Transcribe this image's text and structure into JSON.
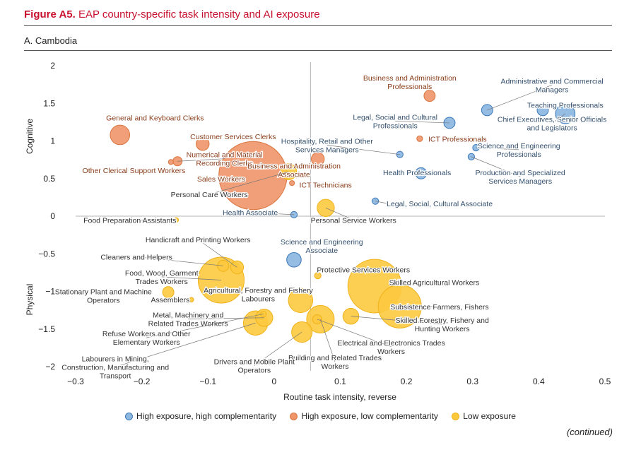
{
  "figure": {
    "label": "Figure A5.",
    "title": "EAP country-specific task intensity and AI exposure",
    "panel": "A. Cambodia",
    "continued": "(continued)"
  },
  "colors": {
    "high_comp": "#8fb8e0",
    "high_comp_edge": "#3a78b8",
    "low_comp": "#f0956a",
    "low_comp_edge": "#d9763f",
    "low_exp": "#fcc93e",
    "low_exp_edge": "#f0b21a",
    "label_blue": "#34506e",
    "label_orange": "#8a3d1a",
    "label_yellow": "#333333",
    "title_red": "#c8102e"
  },
  "legend": [
    {
      "key": "high_comp",
      "label": "High exposure, high complementarity"
    },
    {
      "key": "low_comp",
      "label": "High exposure, low complementarity"
    },
    {
      "key": "low_exp",
      "label": "Low exposure"
    }
  ],
  "chart_data": {
    "type": "scatter",
    "title": "A. Cambodia",
    "xlabel": "Routine task intensity, reverse",
    "ylabel_top": "Cognitive",
    "ylabel_bottom": "Physical",
    "xlim": [
      -0.3,
      0.5
    ],
    "ylim": [
      -2,
      2
    ],
    "xticks": [
      -0.3,
      -0.2,
      -0.1,
      0,
      0.1,
      0.2,
      0.3,
      0.4,
      0.5
    ],
    "xtick_labels": [
      "−0.3",
      "−0.2",
      "−0.1",
      "0",
      "0.1",
      "0.2",
      "0.3",
      "0.4",
      "0.5"
    ],
    "yticks": [
      2,
      1.5,
      1,
      0.5,
      0,
      -0.5,
      -1,
      -1.5,
      -2
    ],
    "ytick_labels": [
      "2",
      "1.5",
      "1",
      "0.5",
      "0",
      "−0.5",
      "−1",
      "−1.5",
      "−2"
    ],
    "x_reference": 0.055,
    "y_reference": 0,
    "points": [
      {
        "label": "Administrative and Commercial\nManagers",
        "x": 0.322,
        "y": 1.41,
        "size": 3,
        "group": "high_comp",
        "label_dx": 0.42,
        "label_dy": 1.8,
        "anchor": "middle",
        "leader": true
      },
      {
        "label": "Teaching Professionals",
        "x": 0.406,
        "y": 1.41,
        "size": 3,
        "group": "high_comp",
        "label_dx": 0.44,
        "label_dy": 1.48,
        "anchor": "middle",
        "leader": false
      },
      {
        "label": "Chief Executives, Senior Officials\nand Legislators",
        "x": 0.44,
        "y": 1.36,
        "size": 9,
        "group": "high_comp",
        "label_dx": 0.42,
        "label_dy": 1.29,
        "anchor": "middle",
        "leader": true
      },
      {
        "label": "Legal, Social and Cultural\nProfessionals",
        "x": 0.265,
        "y": 1.24,
        "size": 3,
        "group": "high_comp",
        "label_dx": 0.183,
        "label_dy": 1.32,
        "anchor": "middle",
        "leader": true
      },
      {
        "label": "Hospitality, Retail and Other\nServices Managers",
        "x": 0.19,
        "y": 0.82,
        "size": 1,
        "group": "high_comp",
        "label_dx": 0.08,
        "label_dy": 1.0,
        "anchor": "middle",
        "leader": true
      },
      {
        "label": "Science and Engineering\nProfessionals",
        "x": 0.305,
        "y": 0.91,
        "size": 1,
        "group": "high_comp",
        "label_dx": 0.37,
        "label_dy": 0.94,
        "anchor": "middle",
        "leader": true
      },
      {
        "label": "Production and Specialized\nServices Managers",
        "x": 0.298,
        "y": 0.79,
        "size": 1,
        "group": "high_comp",
        "label_dx": 0.372,
        "label_dy": 0.58,
        "anchor": "middle",
        "leader": true
      },
      {
        "label": "Health Professionals",
        "x": 0.222,
        "y": 0.57,
        "size": 3,
        "group": "high_comp",
        "label_dx": 0.216,
        "label_dy": 0.58,
        "anchor": "middle",
        "leader": false
      },
      {
        "label": "Legal, Social, Cultural Associate",
        "x": 0.153,
        "y": 0.2,
        "size": 1,
        "group": "high_comp",
        "label_dx": 0.17,
        "label_dy": 0.17,
        "anchor": "start",
        "leader": true
      },
      {
        "label": "Health Associate",
        "x": 0.03,
        "y": 0.02,
        "size": 1,
        "group": "high_comp",
        "label_dx": -0.036,
        "label_dy": 0.05,
        "anchor": "middle",
        "leader": true
      },
      {
        "label": "Science and Engineering\nAssociate",
        "x": 0.03,
        "y": -0.58,
        "size": 5,
        "group": "high_comp",
        "label_dx": 0.072,
        "label_dy": -0.34,
        "anchor": "middle",
        "leader": false
      },
      {
        "label": "Business and Administration\nProfessionals",
        "x": 0.235,
        "y": 1.6,
        "size": 3,
        "group": "low_comp",
        "label_dx": 0.205,
        "label_dy": 1.84,
        "anchor": "middle",
        "leader": false
      },
      {
        "label": "General and Keyboard Clerks",
        "x": -0.233,
        "y": 1.08,
        "size": 9,
        "group": "low_comp",
        "label_dx": -0.18,
        "label_dy": 1.31,
        "anchor": "middle",
        "leader": false
      },
      {
        "label": "Customer Services Clerks",
        "x": -0.108,
        "y": 0.96,
        "size": 4,
        "group": "low_comp",
        "label_dx": -0.062,
        "label_dy": 1.06,
        "anchor": "middle",
        "leader": false
      },
      {
        "label": "Numerical and Material\nRecording Clerks",
        "x": -0.146,
        "y": 0.73,
        "size": 2,
        "group": "low_comp",
        "label_dx": -0.075,
        "label_dy": 0.82,
        "anchor": "middle",
        "leader": true
      },
      {
        "label": "Other Clerical Support Workers",
        "x": -0.156,
        "y": 0.72,
        "size": 0.6,
        "group": "low_comp",
        "label_dx": -0.212,
        "label_dy": 0.61,
        "anchor": "middle",
        "leader": false
      },
      {
        "label": "ICT Professionals",
        "x": 0.22,
        "y": 1.03,
        "size": 0.8,
        "group": "low_comp",
        "label_dx": 0.233,
        "label_dy": 1.03,
        "anchor": "start",
        "leader": false
      },
      {
        "label": "Business and Administration\nAssociate",
        "x": 0.066,
        "y": 0.76,
        "size": 4,
        "group": "low_comp",
        "label_dx": 0.03,
        "label_dy": 0.67,
        "anchor": "middle",
        "leader": false
      },
      {
        "label": "Sales Workers",
        "x": -0.032,
        "y": 0.54,
        "size": 110,
        "group": "low_comp",
        "label_dx": -0.08,
        "label_dy": 0.5,
        "anchor": "middle",
        "leader": false
      },
      {
        "label": "ICT Technicians",
        "x": 0.027,
        "y": 0.44,
        "size": 0.6,
        "group": "low_comp",
        "label_dx": 0.038,
        "label_dy": 0.42,
        "anchor": "start",
        "leader": false
      },
      {
        "label": "Personal Care Workers",
        "x": 0.022,
        "y": 0.59,
        "size": 6,
        "group": "low_exp",
        "label_dx": -0.098,
        "label_dy": 0.29,
        "anchor": "middle",
        "leader": true
      },
      {
        "label": "Food Preparation Assistants",
        "x": -0.148,
        "y": -0.05,
        "size": 0.5,
        "group": "low_exp",
        "label_dx": -0.218,
        "label_dy": -0.05,
        "anchor": "middle",
        "leader": true
      },
      {
        "label": "Personal Service Workers",
        "x": 0.078,
        "y": 0.11,
        "size": 7,
        "group": "low_exp",
        "label_dx": 0.12,
        "label_dy": -0.05,
        "anchor": "middle",
        "leader": true
      },
      {
        "label": "Handicraft and Printing Workers",
        "x": -0.056,
        "y": -0.68,
        "size": 4,
        "group": "low_exp",
        "label_dx": -0.115,
        "label_dy": -0.31,
        "anchor": "middle",
        "leader": true
      },
      {
        "label": "Cleaners and Helpers",
        "x": -0.077,
        "y": -0.66,
        "size": 3,
        "group": "low_exp",
        "label_dx": -0.208,
        "label_dy": -0.54,
        "anchor": "middle",
        "leader": true
      },
      {
        "label": "Food, Wood, Garment\nTrades Workers",
        "x": -0.08,
        "y": -0.85,
        "size": 50,
        "group": "low_exp",
        "label_dx": -0.17,
        "label_dy": -0.75,
        "anchor": "middle",
        "leader": true
      },
      {
        "label": "Stationary Plant and Machine\nOperators",
        "x": -0.16,
        "y": -1.01,
        "size": 3,
        "group": "low_exp",
        "label_dx": -0.258,
        "label_dy": -1.0,
        "anchor": "middle",
        "leader": false
      },
      {
        "label": "Assemblers",
        "x": -0.125,
        "y": -1.11,
        "size": 0.5,
        "group": "low_exp",
        "label_dx": -0.157,
        "label_dy": -1.11,
        "anchor": "middle",
        "leader": false
      },
      {
        "label": "Protective Services Workers",
        "x": 0.066,
        "y": -0.79,
        "size": 1,
        "group": "low_exp",
        "label_dx": 0.135,
        "label_dy": -0.71,
        "anchor": "middle",
        "leader": false
      },
      {
        "label": "Agricultural, Forestry and Fishery\nLabourers",
        "x": 0.04,
        "y": -1.12,
        "size": 14,
        "group": "low_exp",
        "label_dx": -0.024,
        "label_dy": -0.98,
        "anchor": "middle",
        "leader": false
      },
      {
        "label": "Skilled Agricultural Workers",
        "x": 0.152,
        "y": -0.93,
        "size": 68,
        "group": "low_exp",
        "label_dx": 0.242,
        "label_dy": -0.88,
        "anchor": "middle",
        "leader": false
      },
      {
        "label": "Subsistence Farmers, Fishers",
        "x": 0.19,
        "y": -1.2,
        "size": 44,
        "group": "low_exp",
        "label_dx": 0.25,
        "label_dy": -1.2,
        "anchor": "middle",
        "leader": true
      },
      {
        "label": "Skilled Forestry, Fishery and\nHunting Workers",
        "x": 0.116,
        "y": -1.33,
        "size": 6,
        "group": "low_exp",
        "label_dx": 0.254,
        "label_dy": -1.38,
        "anchor": "middle",
        "leader": true
      },
      {
        "label": "Metal, Machinery and\nRelated Trades Workers",
        "x": -0.015,
        "y": -1.35,
        "size": 7,
        "group": "low_exp",
        "label_dx": -0.13,
        "label_dy": -1.31,
        "anchor": "middle",
        "leader": true
      },
      {
        "label": "Refuse Workers and Other\nElementary Workers",
        "x": -0.016,
        "y": -1.3,
        "size": 0.7,
        "group": "low_exp",
        "label_dx": -0.193,
        "label_dy": -1.56,
        "anchor": "middle",
        "leader": true
      },
      {
        "label": "Electrical and Electronics Trades\nWorkers",
        "x": 0.065,
        "y": -1.37,
        "size": 2,
        "group": "low_exp",
        "label_dx": 0.177,
        "label_dy": -1.68,
        "anchor": "middle",
        "leader": true
      },
      {
        "label": "Building and Related Trades\nWorkers",
        "x": 0.07,
        "y": -1.37,
        "size": 18,
        "group": "low_exp",
        "label_dx": 0.092,
        "label_dy": -1.88,
        "anchor": "middle",
        "leader": true
      },
      {
        "label": "Drivers and Mobile Plant\nOperators",
        "x": 0.042,
        "y": -1.54,
        "size": 10,
        "group": "low_exp",
        "label_dx": -0.03,
        "label_dy": -1.93,
        "anchor": "middle",
        "leader": true
      },
      {
        "label": "Labourers in Mining,\nConstruction, Manufacturing and\nTransport",
        "x": -0.028,
        "y": -1.42,
        "size": 14,
        "group": "low_exp",
        "label_dx": -0.24,
        "label_dy": -1.89,
        "anchor": "middle",
        "leader": true
      }
    ]
  }
}
